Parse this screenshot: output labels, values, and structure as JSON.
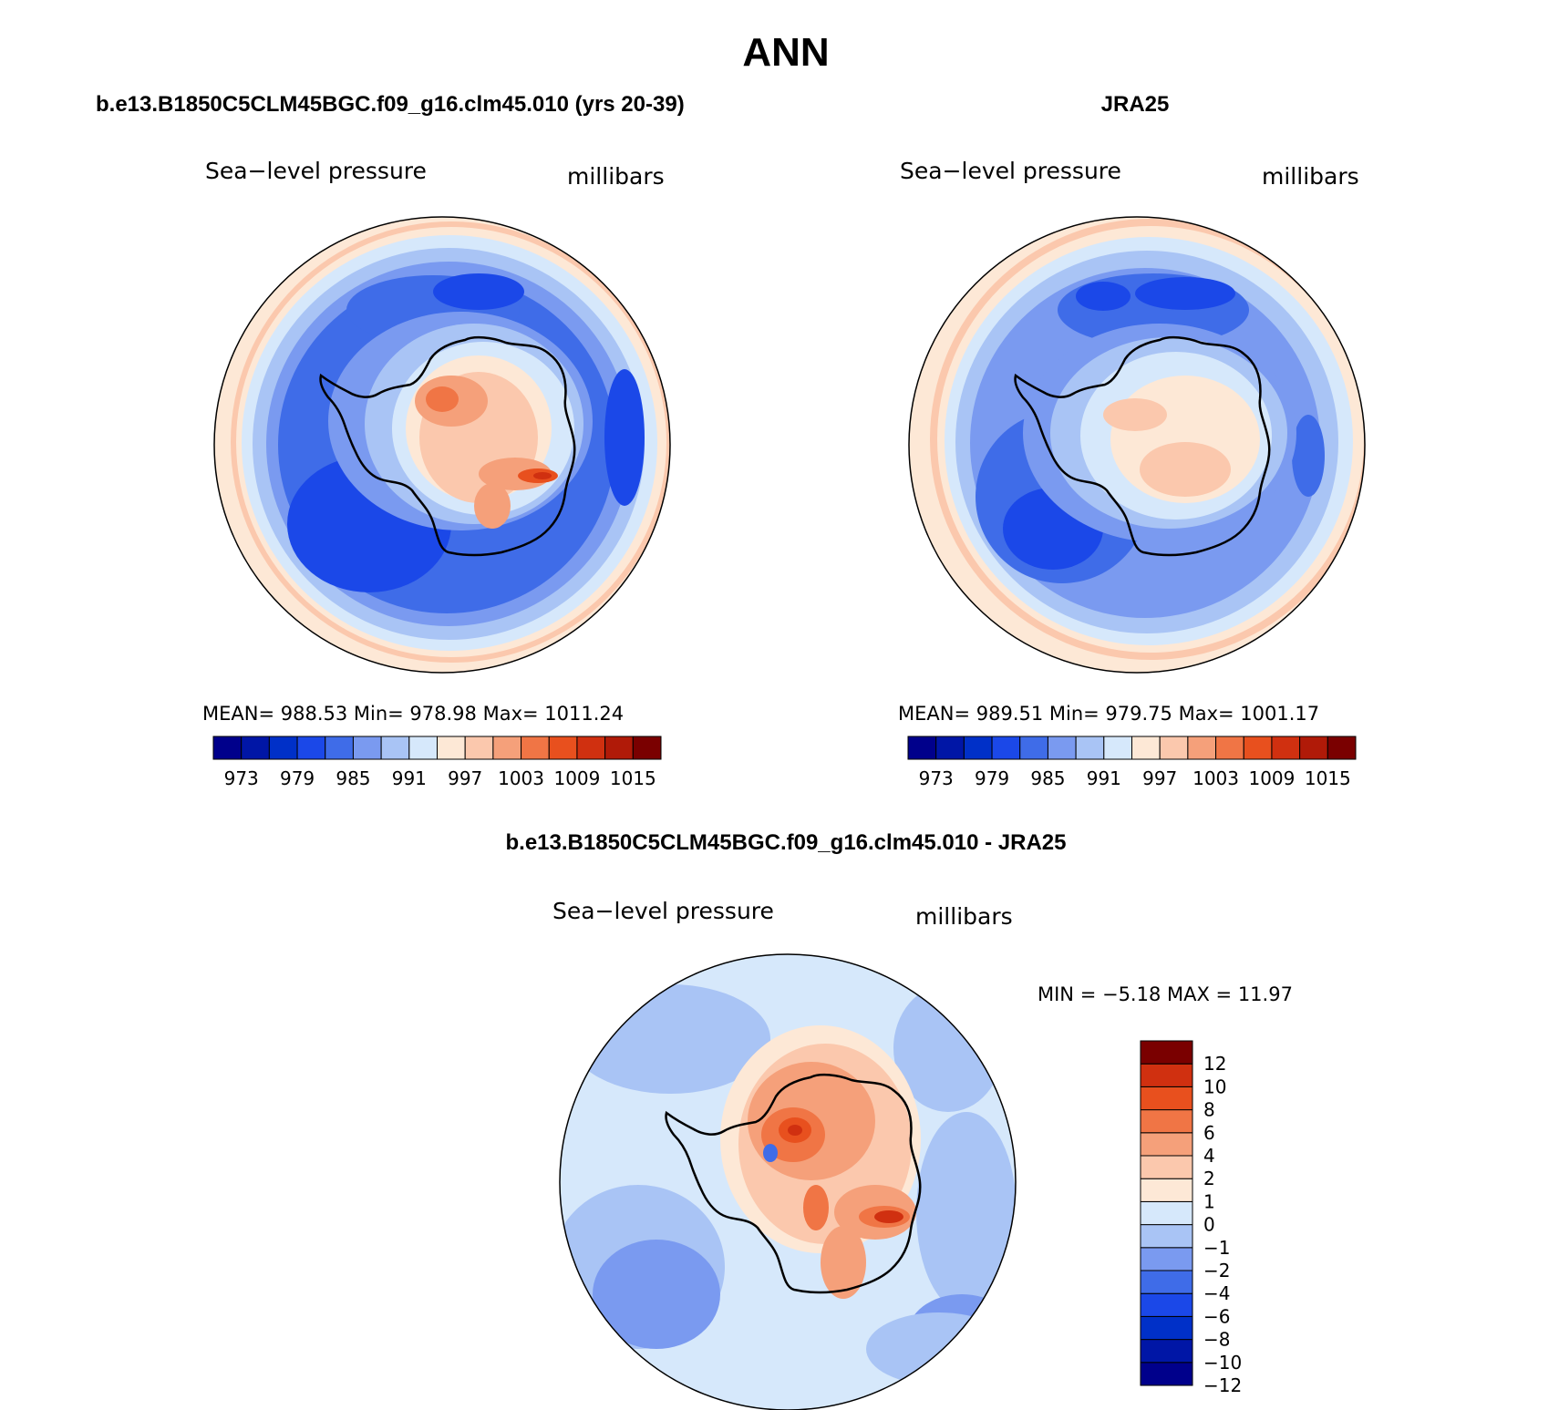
{
  "figure": {
    "title": "ANN",
    "colors": {
      "abs_scale": [
        "#00008b",
        "#0016a6",
        "#0030c8",
        "#1b48e8",
        "#3f6ce8",
        "#7a9af0",
        "#a9c4f5",
        "#d6e8fb",
        "#fde8d6",
        "#fbc8ad",
        "#f5a07a",
        "#f07545",
        "#e8501e",
        "#d03010",
        "#b01a08",
        "#7a0000"
      ],
      "diff_scale": [
        "#00008b",
        "#0016a6",
        "#0030c8",
        "#1b48e8",
        "#3f6ce8",
        "#7a9af0",
        "#a9c4f5",
        "#d6e8fb",
        "#fde8d6",
        "#fbc8ad",
        "#f5a07a",
        "#f07545",
        "#e8501e",
        "#d03010",
        "#7a0000"
      ],
      "coastline": "#000000"
    }
  },
  "panels": [
    {
      "id": "model",
      "header": "b.e13.B1850C5CLM45BGC.f09_g16.clm45.010 (yrs 20-39)",
      "left_label": "Sea−level pressure",
      "right_label": "millibars",
      "stats": "MEAN=  988.53    Min=  978.98    Max=  1011.24",
      "colorbar_ticks": [
        "973",
        "979",
        "985",
        "991",
        "997",
        "1003",
        "1009",
        "1015"
      ]
    },
    {
      "id": "obs",
      "header": "JRA25",
      "left_label": "Sea−level pressure",
      "right_label": "millibars",
      "stats": "MEAN=  989.51    Min=  979.75    Max=  1001.17",
      "colorbar_ticks": [
        "973",
        "979",
        "985",
        "991",
        "997",
        "1003",
        "1009",
        "1015"
      ]
    },
    {
      "id": "diff",
      "header": "b.e13.B1850C5CLM45BGC.f09_g16.clm45.010 - JRA25",
      "left_label": "Sea−level pressure",
      "right_label": "millibars",
      "stats": "MIN =   −5.18  MAX =    11.97",
      "colorbar_ticks": [
        "12",
        "10",
        "8",
        "6",
        "4",
        "2",
        "1",
        "0",
        "−1",
        "−2",
        "−4",
        "−6",
        "−8",
        "−10",
        "−12"
      ]
    }
  ]
}
